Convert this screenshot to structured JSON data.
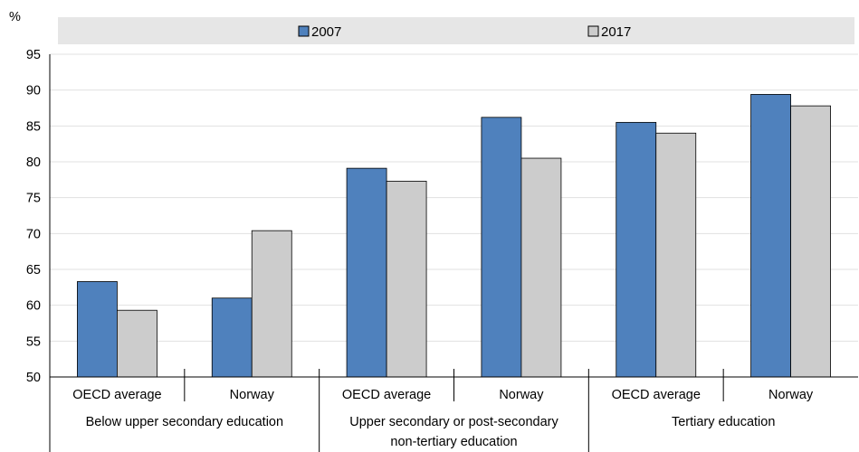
{
  "chart_data": {
    "type": "bar",
    "ylabel": "%",
    "ylim": [
      50,
      95
    ],
    "yticks": [
      50,
      55,
      60,
      65,
      70,
      75,
      80,
      85,
      90,
      95
    ],
    "grid": true,
    "legend_position": "top",
    "groups": [
      {
        "label": "Below upper secondary education",
        "categories": [
          "OECD average",
          "Norway"
        ]
      },
      {
        "label": "Upper secondary or post-secondary non-tertiary education",
        "categories": [
          "OECD average",
          "Norway"
        ]
      },
      {
        "label": "Tertiary education",
        "categories": [
          "OECD average",
          "Norway"
        ]
      }
    ],
    "series": [
      {
        "name": "2007",
        "color": "#4f81bd",
        "values": [
          63.3,
          61.0,
          79.1,
          86.2,
          85.5,
          89.4
        ]
      },
      {
        "name": "2017",
        "color": "#cccccc",
        "values": [
          59.3,
          70.4,
          77.3,
          80.5,
          84.0,
          87.8
        ]
      }
    ],
    "colors": {
      "legend_band": "#e6e6e6",
      "bar_stroke": "#000000"
    }
  }
}
